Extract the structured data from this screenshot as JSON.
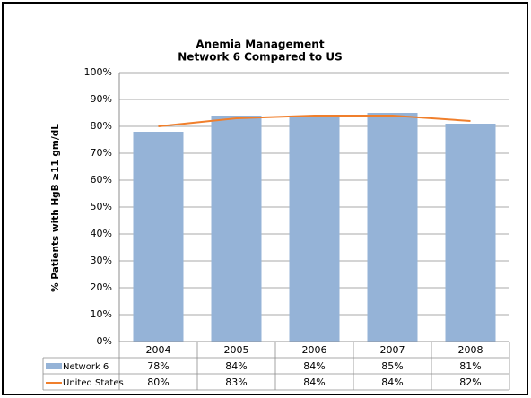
{
  "chart_data": {
    "type": "bar",
    "title": "Anemia Management",
    "subtitle": "Network 6 Compared to US",
    "y_label": "% Patients with HgB ≥11 gm/dL",
    "categories": [
      "2004",
      "2005",
      "2006",
      "2007",
      "2008"
    ],
    "series": [
      {
        "name": "Network 6",
        "type": "bar",
        "color": "#95b3d7",
        "values": [
          78,
          84,
          84,
          85,
          81
        ],
        "value_labels": [
          "78%",
          "84%",
          "84%",
          "85%",
          "81%"
        ]
      },
      {
        "name": "United States",
        "type": "line",
        "color": "#f07f2c",
        "values": [
          80,
          83,
          84,
          84,
          82
        ],
        "value_labels": [
          "80%",
          "83%",
          "84%",
          "84%",
          "82%"
        ]
      }
    ],
    "ylim": [
      0,
      100
    ],
    "yticks": [
      {
        "value": 0,
        "label": "0%"
      },
      {
        "value": 10,
        "label": "10%"
      },
      {
        "value": 20,
        "label": "20%"
      },
      {
        "value": 30,
        "label": "30%"
      },
      {
        "value": 40,
        "label": "40%"
      },
      {
        "value": 50,
        "label": "50%"
      },
      {
        "value": 60,
        "label": "60%"
      },
      {
        "value": 70,
        "label": "70%"
      },
      {
        "value": 80,
        "label": "80%"
      },
      {
        "value": 90,
        "label": "90%"
      },
      {
        "value": 100,
        "label": "100%"
      }
    ],
    "grid": true
  }
}
